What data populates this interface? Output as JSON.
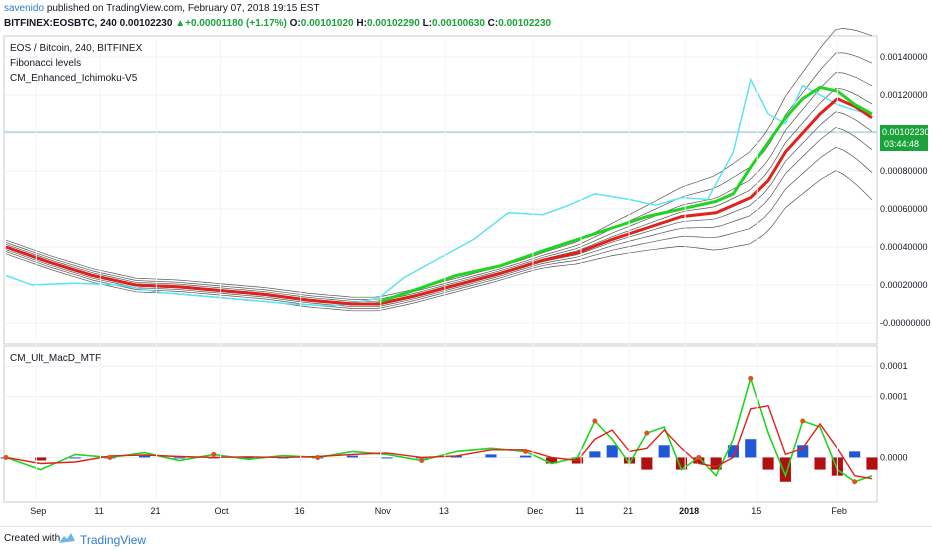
{
  "header": {
    "author": "savenido",
    "published_text": "published on TradingView.com, February 07, 2018 19:15 EST",
    "symbol": "BITFINEX:EOSBTC, 240",
    "last": "0.00102230",
    "change": "+0.00001180 (+1.17%)",
    "o_label": "O:",
    "o_value": "0.00101020",
    "h_label": "H:",
    "h_value": "0.00102290",
    "l_label": "L:",
    "l_value": "0.00100630",
    "c_label": "C:",
    "c_value": "0.00102230"
  },
  "legend": {
    "title": "EOS / Bitcoin, 240, BITFINEX",
    "line2": "Fibonacci levels",
    "line3": "CM_Enhanced_Ichimoku-V5",
    "macd_title": "CM_Ult_MacD_MTF"
  },
  "price_badge": {
    "value": "0.00102230",
    "countdown": "03:44:48",
    "color": "#1aa33a"
  },
  "footer": {
    "created_with": "Created with",
    "brand": "TradingView"
  },
  "colors": {
    "cyan": "#5ee3f0",
    "red": "#e0221c",
    "green": "#22d322",
    "hist_blue": "#2058d8",
    "hist_red": "#b01010",
    "band": "#555555"
  },
  "chart_data": [
    {
      "type": "line",
      "title": "EOS / Bitcoin, 240, BITFINEX",
      "ylim": [
        -0.0001,
        0.0015
      ],
      "y_ticks": [
        "0.00140000",
        "0.00120000",
        "0.00100000",
        "0.00080000",
        "0.00060000",
        "0.00040000",
        "0.00020000",
        "-0.00000000"
      ],
      "y_tick_values": [
        0.0014,
        0.0012,
        0.001,
        0.0008,
        0.0006,
        0.0004,
        0.0002,
        0.0
      ],
      "x_labels": [
        "Sep",
        "11",
        "21",
        "Oct",
        "16",
        "Nov",
        "13",
        "Dec",
        "11",
        "21",
        "2018",
        "15",
        "Feb"
      ],
      "x_label_pos": [
        0.0,
        0.08,
        0.15,
        0.23,
        0.33,
        0.43,
        0.51,
        0.62,
        0.68,
        0.74,
        0.81,
        0.9,
        1.0
      ],
      "series": [
        {
          "color": "#5ee3f0",
          "x": [
            0,
            0.03,
            0.08,
            0.13,
            0.18,
            0.23,
            0.28,
            0.33,
            0.38,
            0.43,
            0.46,
            0.5,
            0.54,
            0.58,
            0.62,
            0.65,
            0.68,
            0.72,
            0.75,
            0.78,
            0.81,
            0.84,
            0.86,
            0.88,
            0.9,
            0.92,
            0.94,
            0.96,
            0.98,
            1.0
          ],
          "values": [
            0.00025,
            0.0002,
            0.00021,
            0.0002,
            0.00016,
            0.00014,
            0.00012,
            0.0001,
            9e-05,
            0.00013,
            0.00024,
            0.00034,
            0.00044,
            0.00058,
            0.00057,
            0.00062,
            0.00068,
            0.00065,
            0.00062,
            0.00066,
            0.00065,
            0.0009,
            0.00128,
            0.0011,
            0.00105,
            0.00125,
            0.0012,
            0.00115,
            0.00112,
            0.0011
          ]
        },
        {
          "color": "#e0221c",
          "x": [
            0,
            0.05,
            0.1,
            0.15,
            0.2,
            0.25,
            0.3,
            0.35,
            0.4,
            0.43,
            0.47,
            0.52,
            0.57,
            0.62,
            0.66,
            0.7,
            0.74,
            0.78,
            0.82,
            0.84,
            0.86,
            0.88,
            0.9,
            0.92,
            0.94,
            0.96,
            0.98,
            1.0
          ],
          "values": [
            0.0004,
            0.00032,
            0.00025,
            0.0002,
            0.00019,
            0.00017,
            0.00015,
            0.00012,
            0.0001,
            0.0001,
            0.00014,
            0.0002,
            0.00026,
            0.00033,
            0.00037,
            0.00044,
            0.0005,
            0.00056,
            0.00058,
            0.00062,
            0.00066,
            0.00075,
            0.0009,
            0.001,
            0.0011,
            0.00118,
            0.00114,
            0.00108
          ]
        },
        {
          "color": "#22d322",
          "x": [
            0.43,
            0.47,
            0.52,
            0.57,
            0.62,
            0.66,
            0.7,
            0.74,
            0.78,
            0.82,
            0.84,
            0.86,
            0.88,
            0.9,
            0.92,
            0.94,
            0.96,
            0.98,
            1.0
          ],
          "values": [
            0.00011,
            0.00017,
            0.00025,
            0.0003,
            0.00038,
            0.00044,
            0.0005,
            0.00056,
            0.0006,
            0.00064,
            0.00068,
            0.00082,
            0.00095,
            0.00108,
            0.00118,
            0.00124,
            0.00122,
            0.00115,
            0.0011
          ]
        }
      ]
    },
    {
      "type": "bar",
      "title": "CM_Ult_MacD_MTF",
      "ylim": [
        -7e-05,
        0.00018
      ],
      "y_ticks": [
        "0.0001",
        "0.0001",
        "0.0000"
      ],
      "y_tick_values": [
        0.00015,
        0.0001,
        0.0
      ],
      "x": [
        0,
        0.04,
        0.08,
        0.12,
        0.16,
        0.2,
        0.24,
        0.28,
        0.32,
        0.36,
        0.4,
        0.44,
        0.48,
        0.52,
        0.56,
        0.6,
        0.63,
        0.66,
        0.68,
        0.7,
        0.72,
        0.74,
        0.76,
        0.78,
        0.8,
        0.82,
        0.84,
        0.86,
        0.88,
        0.9,
        0.92,
        0.94,
        0.96,
        0.98,
        1.0
      ],
      "macd": [
        0.0,
        -2e-05,
        5e-06,
        0.0,
        8e-06,
        -5e-06,
        5e-06,
        -3e-06,
        3e-06,
        0.0,
        1e-05,
        5e-06,
        -5e-06,
        1e-05,
        1.5e-05,
        1e-05,
        -1e-05,
        0.0,
        6e-05,
        3e-05,
        -1e-05,
        4e-05,
        5e-05,
        -2e-05,
        0.0,
        -3e-05,
        3e-05,
        0.00013,
        4e-05,
        -3e-05,
        6e-05,
        5e-05,
        -2e-05,
        -4e-05,
        -3e-05
      ],
      "histogram": [
        0.0,
        -5e-06,
        0.0,
        0.0,
        3e-06,
        0.0,
        0.0,
        0.0,
        0.0,
        0.0,
        3e-06,
        0.0,
        0.0,
        3e-06,
        5e-06,
        3e-06,
        -1e-05,
        -1e-05,
        1e-05,
        2e-05,
        -1e-05,
        -2e-05,
        2e-05,
        -2e-05,
        -1e-05,
        -2e-05,
        2e-05,
        3e-05,
        -2e-05,
        -4e-05,
        2e-05,
        -2e-05,
        -3e-05,
        1e-05,
        -2e-05
      ]
    }
  ]
}
